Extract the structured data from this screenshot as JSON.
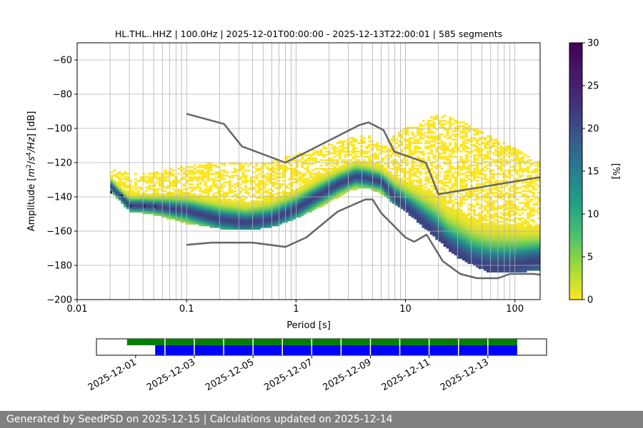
{
  "chart_data": [
    {
      "type": "heatmap",
      "title": "HL.THL..HHZ | 100.0Hz | 2025-12-01T00:00:00 - 2025-12-13T22:00:01 | 585 segments",
      "xlabel": "Period [s]",
      "ylabel_parts": [
        "Amplitude [",
        "m",
        "2",
        "/",
        "s",
        "4",
        "/",
        "Hz",
        "] [dB]"
      ],
      "x_scale": "log",
      "xlim": [
        0.01,
        170
      ],
      "ylim": [
        -200,
        -50
      ],
      "x_ticks": [
        {
          "value": 0.01,
          "label": "0.01"
        },
        {
          "value": 0.1,
          "label": "0.1"
        },
        {
          "value": 1,
          "label": "1"
        },
        {
          "value": 10,
          "label": "10"
        },
        {
          "value": 100,
          "label": "100"
        }
      ],
      "y_ticks": [
        {
          "value": -60,
          "label": "−60"
        },
        {
          "value": -80,
          "label": "−80"
        },
        {
          "value": -100,
          "label": "−100"
        },
        {
          "value": -120,
          "label": "−120"
        },
        {
          "value": -140,
          "label": "−140"
        },
        {
          "value": -160,
          "label": "−160"
        },
        {
          "value": -180,
          "label": "−180"
        },
        {
          "value": -200,
          "label": "−200"
        }
      ],
      "grid": true,
      "colormap": "viridis_r",
      "colorbar": {
        "label": "[%]",
        "range": [
          0,
          30
        ],
        "ticks": [
          {
            "value": 0,
            "label": "0"
          },
          {
            "value": 5,
            "label": "5"
          },
          {
            "value": 10,
            "label": "10"
          },
          {
            "value": 15,
            "label": "15"
          },
          {
            "value": 20,
            "label": "20"
          },
          {
            "value": 25,
            "label": "25"
          },
          {
            "value": 30,
            "label": "30"
          }
        ]
      },
      "noise_models": {
        "color": "#666666",
        "high": [
          [
            0.1,
            -91.5
          ],
          [
            0.22,
            -97.4
          ],
          [
            0.32,
            -110.5
          ],
          [
            0.8,
            -120
          ],
          [
            3.8,
            -98
          ],
          [
            4.6,
            -96.5
          ],
          [
            6.3,
            -101
          ],
          [
            7.9,
            -113.5
          ],
          [
            15.4,
            -120
          ],
          [
            20,
            -138.5
          ],
          [
            170,
            -128.5
          ]
        ],
        "low": [
          [
            0.1,
            -168
          ],
          [
            0.17,
            -166.7
          ],
          [
            0.4,
            -166.7
          ],
          [
            0.8,
            -169.2
          ],
          [
            1.24,
            -163.7
          ],
          [
            2.4,
            -148.6
          ],
          [
            4.3,
            -141.5
          ],
          [
            5.0,
            -141.5
          ],
          [
            6.0,
            -149.4
          ],
          [
            10,
            -163.7
          ],
          [
            12,
            -166.2
          ],
          [
            15.6,
            -162.1
          ],
          [
            21.9,
            -177.5
          ],
          [
            31.6,
            -185
          ],
          [
            45,
            -187.5
          ],
          [
            70,
            -187.5
          ],
          [
            90,
            -185
          ],
          [
            150,
            -185
          ],
          [
            170,
            -185.5
          ]
        ]
      },
      "mode_curve": [
        [
          0.02,
          -133
        ],
        [
          0.03,
          -145
        ],
        [
          0.04,
          -145
        ],
        [
          0.06,
          -146
        ],
        [
          0.1,
          -148
        ],
        [
          0.2,
          -153
        ],
        [
          0.35,
          -155
        ],
        [
          0.6,
          -153
        ],
        [
          1.0,
          -147
        ],
        [
          1.5,
          -140
        ],
        [
          2.5,
          -132
        ],
        [
          3.5,
          -128
        ],
        [
          4.5,
          -129
        ],
        [
          6.0,
          -131
        ],
        [
          8,
          -140
        ],
        [
          12,
          -150
        ],
        [
          18,
          -160
        ],
        [
          25,
          -170
        ],
        [
          40,
          -178
        ],
        [
          60,
          -181
        ],
        [
          100,
          -180
        ],
        [
          170,
          -177
        ]
      ],
      "spread_band": [
        [
          0.02,
          -136,
          -124
        ],
        [
          0.03,
          -148,
          -126
        ],
        [
          0.05,
          -150,
          -126
        ],
        [
          0.1,
          -155,
          -122
        ],
        [
          0.2,
          -158,
          -120
        ],
        [
          0.4,
          -159,
          -121
        ],
        [
          0.7,
          -156,
          -118
        ],
        [
          1,
          -152,
          -115
        ],
        [
          2,
          -143,
          -110
        ],
        [
          3,
          -136,
          -106
        ],
        [
          4.5,
          -134,
          -104
        ],
        [
          6,
          -138,
          -110
        ],
        [
          10,
          -148,
          -100
        ],
        [
          20,
          -165,
          -92
        ],
        [
          30,
          -175,
          -95
        ],
        [
          60,
          -184,
          -105
        ],
        [
          100,
          -184,
          -112
        ],
        [
          170,
          -182,
          -120
        ]
      ],
      "min_band": [
        [
          0.02,
          -138
        ],
        [
          0.025,
          -140
        ],
        [
          0.03,
          -146
        ],
        [
          0.04,
          -146
        ],
        [
          0.05,
          -146
        ]
      ]
    },
    {
      "type": "timeline",
      "x_ticks": [
        "2025-12-01",
        "2025-12-03",
        "2025-12-05",
        "2025-12-07",
        "2025-12-09",
        "2025-12-11",
        "2025-12-13"
      ],
      "x_start": "2025-11-29T16:00:00",
      "x_end": "2025-12-15T00:00:00",
      "bar_colors": {
        "upper": "#008000",
        "lower": "#0000ff"
      },
      "upper_bar": [
        "2025-11-30T17:00:00",
        "2025-12-14T00:00:00"
      ],
      "lower_bar": [
        "2025-12-01T16:00:00",
        "2025-12-14T00:00:00"
      ],
      "divider_days": [
        "2025-12-02",
        "2025-12-03",
        "2025-12-04",
        "2025-12-05",
        "2025-12-06",
        "2025-12-07",
        "2025-12-08",
        "2025-12-09",
        "2025-12-10",
        "2025-12-11",
        "2025-12-12",
        "2025-12-13"
      ]
    }
  ],
  "footer": "Generated by SeedPSD on 2025-12-15 | Calculations updated on 2025-12-14"
}
